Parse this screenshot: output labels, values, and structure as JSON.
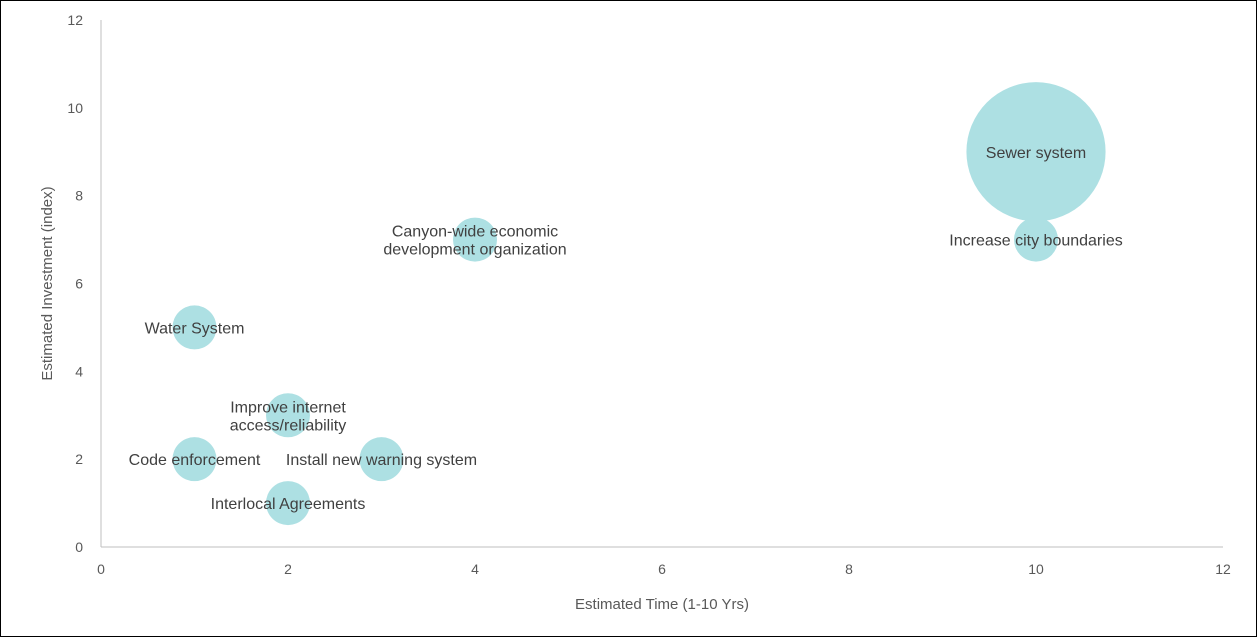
{
  "chart_data": {
    "type": "bubble",
    "xlabel": "Estimated Time (1-10 Yrs)",
    "ylabel": "Estimated Investment (index)",
    "xlim": [
      0,
      12
    ],
    "ylim": [
      0,
      12
    ],
    "x_ticks": [
      "0",
      "2",
      "4",
      "6",
      "8",
      "10",
      "12"
    ],
    "y_ticks": [
      "0",
      "2",
      "4",
      "6",
      "8",
      "10",
      "12"
    ],
    "grid": false,
    "bubble_color": "#ade0e3",
    "label_color": "#404040",
    "points": [
      {
        "label_lines": [
          "Sewer system"
        ],
        "x": 10,
        "y": 9,
        "size": 10
      },
      {
        "label_lines": [
          "Increase city boundaries"
        ],
        "x": 10,
        "y": 7,
        "size": 1
      },
      {
        "label_lines": [
          "Canyon-wide economic",
          "development organization"
        ],
        "x": 4,
        "y": 7,
        "size": 1
      },
      {
        "label_lines": [
          "Water System"
        ],
        "x": 1,
        "y": 5,
        "size": 1
      },
      {
        "label_lines": [
          "Improve internet",
          "access/reliability"
        ],
        "x": 2,
        "y": 3,
        "size": 1
      },
      {
        "label_lines": [
          "Code enforcement"
        ],
        "x": 1,
        "y": 2,
        "size": 1
      },
      {
        "label_lines": [
          "Install new warning system"
        ],
        "x": 3,
        "y": 2,
        "size": 1
      },
      {
        "label_lines": [
          "Interlocal Agreements"
        ],
        "x": 2,
        "y": 1,
        "size": 1
      }
    ]
  }
}
